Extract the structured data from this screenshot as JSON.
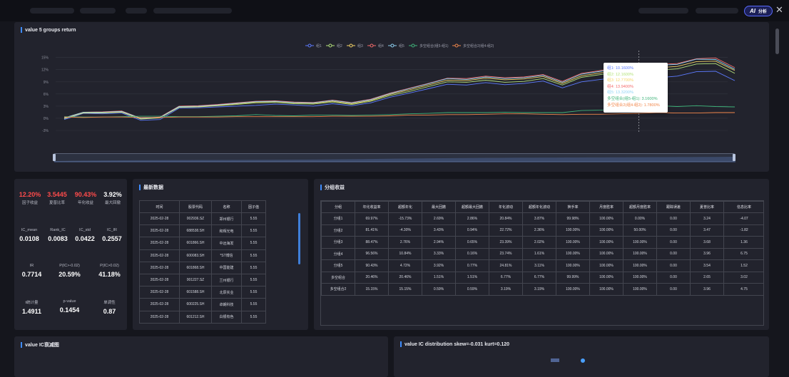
{
  "header": {
    "ai_button_label": "分析",
    "ai_icon_text": "AI",
    "close_icon": "close-icon"
  },
  "returns_panel": {
    "title": "value 5 groups return",
    "legend": [
      "组1",
      "组2",
      "组3",
      "组4",
      "组5",
      "多空组合(组5-组1)",
      "多空组合2(组4-组2)"
    ],
    "tooltip": [
      "组1: 10.1600%",
      "组2: 12.1600%",
      "组3: 12.7700%",
      "组4: 13.9400%",
      "组5: 13.3200%",
      "多空组合(组5-组1): 3.1600%",
      "多空组合2(组4-组2): 1.7800%"
    ]
  },
  "chart_data": {
    "type": "line",
    "title": "value 5 groups return",
    "ylim": [
      -3,
      16
    ],
    "y_ticks": [
      "15%",
      "12%",
      "9%",
      "6%",
      "3%",
      "0%",
      "-3%"
    ],
    "grid": true,
    "legend_position": "top",
    "colors": [
      "#5d7bff",
      "#b5e37c",
      "#f5d567",
      "#f46b6b",
      "#8fd3f4",
      "#3fb47a",
      "#f2874b"
    ],
    "series": [
      {
        "name": "组1",
        "values": [
          -0.3,
          1.2,
          1.1,
          1.3,
          -0.5,
          -0.3,
          2.5,
          2.6,
          2.8,
          3.0,
          3.2,
          3.5,
          3.3,
          3.0,
          3.6,
          3.1,
          3.8,
          5.2,
          6.2,
          7.3,
          8.4,
          8.2,
          8.8,
          8.3,
          8.6,
          9.2,
          7.5,
          9.0,
          9.6,
          10.1,
          10.3,
          10.0,
          10.4,
          11.5,
          11.6,
          9.3
        ]
      },
      {
        "name": "组2",
        "values": [
          -0.1,
          1.3,
          1.3,
          1.5,
          -0.2,
          0.1,
          2.7,
          2.8,
          3.1,
          3.4,
          3.8,
          3.9,
          3.6,
          3.5,
          4.0,
          3.4,
          4.2,
          5.6,
          6.6,
          7.8,
          9.0,
          8.9,
          9.4,
          8.9,
          9.1,
          9.8,
          8.2,
          10.1,
          10.8,
          11.5,
          12.0,
          11.9,
          12.2,
          13.4,
          13.5,
          11.1
        ]
      },
      {
        "name": "组3",
        "values": [
          0.0,
          1.4,
          1.4,
          1.6,
          -0.1,
          0.2,
          2.8,
          2.9,
          3.2,
          3.6,
          4.0,
          4.1,
          3.8,
          3.7,
          4.2,
          3.6,
          4.4,
          5.9,
          7.0,
          8.2,
          9.4,
          9.3,
          9.9,
          9.5,
          9.7,
          10.3,
          8.6,
          10.5,
          11.2,
          12.0,
          12.6,
          12.5,
          12.8,
          14.0,
          14.1,
          11.8
        ]
      },
      {
        "name": "组4",
        "values": [
          0.1,
          1.5,
          1.6,
          1.8,
          0.0,
          0.3,
          3.0,
          3.1,
          3.4,
          3.8,
          4.2,
          4.3,
          4.0,
          3.9,
          4.5,
          3.9,
          4.7,
          6.2,
          7.4,
          8.6,
          9.9,
          9.8,
          10.4,
          10.0,
          10.2,
          10.8,
          9.1,
          11.1,
          11.8,
          12.6,
          13.2,
          13.3,
          13.5,
          14.7,
          14.9,
          12.5
        ]
      },
      {
        "name": "组5",
        "values": [
          0.1,
          1.5,
          1.5,
          1.7,
          0.0,
          0.2,
          2.9,
          3.0,
          3.3,
          3.7,
          4.1,
          4.2,
          3.9,
          3.8,
          4.4,
          3.8,
          4.6,
          6.1,
          7.3,
          8.5,
          9.8,
          9.6,
          10.2,
          9.8,
          10.0,
          10.6,
          8.9,
          10.9,
          11.6,
          12.4,
          13.0,
          13.1,
          13.3,
          14.6,
          14.5,
          12.1
        ]
      },
      {
        "name": "多空组合(组5-组1)",
        "values": [
          0.4,
          0.3,
          0.3,
          0.4,
          0.5,
          0.5,
          0.4,
          0.4,
          0.5,
          0.6,
          0.9,
          0.7,
          0.6,
          0.8,
          0.8,
          0.7,
          0.8,
          0.9,
          1.1,
          1.2,
          1.4,
          1.4,
          1.4,
          1.5,
          1.4,
          1.4,
          1.4,
          1.9,
          2.0,
          2.3,
          2.7,
          3.1,
          2.9,
          3.1,
          2.9,
          2.8
        ]
      },
      {
        "name": "多空组合2(组4-组2)",
        "values": [
          0.3,
          0.2,
          0.3,
          0.3,
          0.2,
          0.2,
          0.3,
          0.3,
          0.3,
          0.4,
          0.4,
          0.4,
          0.4,
          0.4,
          0.5,
          0.5,
          0.5,
          0.6,
          0.8,
          0.8,
          0.9,
          0.9,
          1.0,
          1.1,
          1.1,
          1.0,
          0.9,
          1.0,
          1.0,
          1.1,
          1.2,
          1.4,
          1.3,
          1.3,
          1.4,
          1.4
        ]
      }
    ]
  },
  "metrics": {
    "top": [
      {
        "value": "12.20%",
        "label": "因子收益",
        "color": "#ff4b4b"
      },
      {
        "value": "3.5445",
        "label": "夏普比率",
        "color": "#ff4b4b"
      },
      {
        "value": "90.43%",
        "label": "年化收益",
        "color": "#ff4b4b"
      },
      {
        "value": "3.92%",
        "label": "最大回撤",
        "color": "#ffffff"
      }
    ],
    "rows": [
      [
        {
          "label": "IC_mean",
          "value": "0.0108"
        },
        {
          "label": "Rank_IC",
          "value": "0.0083"
        },
        {
          "label": "IC_std",
          "value": "0.0422"
        },
        {
          "label": "IC_IR",
          "value": "0.2557"
        }
      ],
      [
        {
          "label": "IR",
          "value": "0.7714"
        },
        {
          "label": "P(IC>-0.02)",
          "value": "20.59%"
        },
        {
          "label": "P(IC>0.02)",
          "value": "41.18%"
        }
      ],
      [
        {
          "label": "t统计量",
          "value": "1.4911"
        },
        {
          "label": "p-value",
          "value": "0.1454"
        },
        {
          "label": "单调性",
          "value": "0.87"
        }
      ]
    ]
  },
  "latest": {
    "title": "最新数据",
    "headers": [
      "时间",
      "股票代码",
      "名称",
      "因子值"
    ],
    "rows": [
      [
        "2025-02-28",
        "002936.SZ",
        "郑州银行",
        "5.55"
      ],
      [
        "2025-02-28",
        "688538.SH",
        "和辉光电",
        "5.55"
      ],
      [
        "2025-02-28",
        "601866.SH",
        "中远海发",
        "5.55"
      ],
      [
        "2025-02-28",
        "600083.SH",
        "*ST博信",
        "5.55"
      ],
      [
        "2025-02-28",
        "601868.SH",
        "中国能建",
        "5.55"
      ],
      [
        "2025-02-28",
        "001227.SZ",
        "兰州银行",
        "5.55"
      ],
      [
        "2025-02-28",
        "601588.SH",
        "北辰实业",
        "5.55"
      ],
      [
        "2025-02-28",
        "600225.SH",
        "卓朗科技",
        "5.55"
      ],
      [
        "2025-02-28",
        "601212.SH",
        "白银有色",
        "5.55"
      ]
    ]
  },
  "group_returns": {
    "title": "分组收益",
    "headers": [
      "分组",
      "年化收益率",
      "超额年化",
      "最大回撤",
      "超额最大回撤",
      "年化波动",
      "超额年化波动",
      "换手率",
      "月度胜率",
      "超额月度胜率",
      "跟踪误差",
      "夏普比率",
      "信息比率"
    ],
    "rows": [
      [
        "分组1",
        "69.97%",
        "-15.73%",
        "2.69%",
        "2.86%",
        "20.84%",
        "3.87%",
        "99.98%",
        "100.00%",
        "0.00%",
        "0.00",
        "3.24",
        "-4.07"
      ],
      [
        "分组2",
        "81.41%",
        "-4.30%",
        "3.43%",
        "0.94%",
        "22.72%",
        "2.36%",
        "100.00%",
        "100.00%",
        "50.00%",
        "0.00",
        "3.47",
        "-1.82"
      ],
      [
        "分组3",
        "88.47%",
        "2.76%",
        "2.94%",
        "0.65%",
        "23.39%",
        "2.02%",
        "100.00%",
        "100.00%",
        "100.00%",
        "0.00",
        "3.68",
        "1.36"
      ],
      [
        "分组4",
        "96.56%",
        "10.84%",
        "3.33%",
        "0.16%",
        "23.74%",
        "1.61%",
        "100.00%",
        "100.00%",
        "100.00%",
        "0.00",
        "3.96",
        "6.75"
      ],
      [
        "分组5",
        "90.43%",
        "4.72%",
        "3.92%",
        "0.77%",
        "24.81%",
        "3.11%",
        "100.00%",
        "100.00%",
        "100.00%",
        "0.00",
        "3.54",
        "1.52"
      ],
      [
        "多空组合",
        "20.46%",
        "20.46%",
        "1.51%",
        "1.51%",
        "6.77%",
        "6.77%",
        "99.99%",
        "100.00%",
        "100.00%",
        "0.00",
        "2.65",
        "3.02"
      ],
      [
        "多空组合2",
        "15.15%",
        "15.15%",
        "0.59%",
        "0.59%",
        "3.19%",
        "3.19%",
        "100.00%",
        "100.00%",
        "100.00%",
        "0.00",
        "3.96",
        "4.75"
      ]
    ]
  },
  "ic_decay": {
    "title": "value IC衰减图"
  },
  "ic_dist": {
    "title": "value IC distribution skew=-0.031 kurt=0.120"
  }
}
